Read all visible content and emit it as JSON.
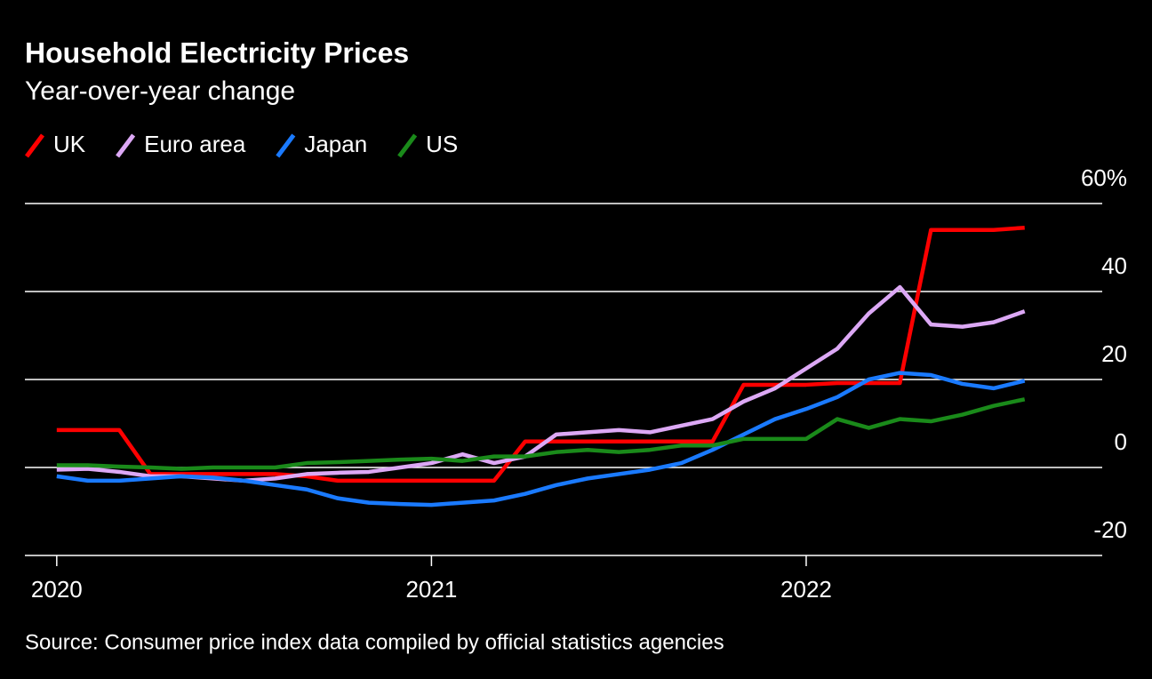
{
  "chart_data": {
    "type": "line",
    "title": "Household Electricity Prices",
    "subtitle": "Year-over-year change",
    "source": "Source: Consumer price index data compiled by official statistics agencies",
    "x": [
      2020,
      2020.083,
      2020.167,
      2020.25,
      2020.333,
      2020.417,
      2020.5,
      2020.583,
      2020.667,
      2020.75,
      2020.833,
      2020.917,
      2021,
      2021.083,
      2021.167,
      2021.25,
      2021.333,
      2021.417,
      2021.5,
      2021.583,
      2021.667,
      2021.75,
      2021.833,
      2021.917,
      2022,
      2022.083,
      2022.167,
      2022.25,
      2022.333,
      2022.417,
      2022.5,
      2022.583
    ],
    "series": [
      {
        "name": "UK",
        "color": "#ff0000",
        "values": [
          8.5,
          8.5,
          8.5,
          -1.5,
          -1.5,
          -1.5,
          -1.5,
          -1.5,
          -2,
          -3,
          -3,
          -3,
          -3,
          -3,
          -3,
          5.9,
          5.9,
          5.9,
          5.9,
          5.9,
          5.9,
          5.9,
          18.8,
          18.8,
          18.8,
          19.2,
          19.2,
          19.2,
          54,
          54,
          54,
          54.5
        ]
      },
      {
        "name": "Euro area",
        "color": "#dca8f5",
        "values": [
          -0.5,
          -0.3,
          -1,
          -2,
          -2,
          -2.5,
          -3,
          -2.5,
          -1.5,
          -1.2,
          -1,
          0,
          1,
          3,
          1,
          2.5,
          7.5,
          8,
          8.5,
          8,
          9.5,
          11,
          15,
          18,
          22.5,
          27,
          35,
          41,
          32.5,
          32,
          33,
          35.5
        ]
      },
      {
        "name": "Japan",
        "color": "#1a7aff",
        "values": [
          -2,
          -3,
          -3,
          -2.5,
          -2,
          -2.3,
          -3,
          -4,
          -5,
          -7,
          -8,
          -8.3,
          -8.5,
          -8,
          -7.5,
          -6,
          -4,
          -2.5,
          -1.5,
          -0.5,
          1,
          4,
          7.5,
          11,
          13.3,
          16,
          20,
          21.5,
          21,
          19,
          18,
          19.7
        ]
      },
      {
        "name": "US",
        "color": "#1a8a1a",
        "values": [
          0.5,
          0.5,
          0.2,
          0,
          -0.3,
          0,
          0,
          0,
          1,
          1.2,
          1.5,
          1.8,
          2,
          1.5,
          2.5,
          2.5,
          3.5,
          4,
          3.5,
          4,
          5,
          5,
          6.5,
          6.5,
          6.5,
          11,
          9,
          11,
          10.5,
          12,
          14,
          15.5
        ]
      }
    ],
    "xlim": [
      2019.915,
      2022.79
    ],
    "xticks": [
      2020,
      2021,
      2022
    ],
    "ylim": [
      -20,
      60
    ],
    "yticks": [
      -20,
      0,
      20,
      40,
      {
        "value": 60,
        "label": "60%"
      }
    ],
    "grid": true
  }
}
